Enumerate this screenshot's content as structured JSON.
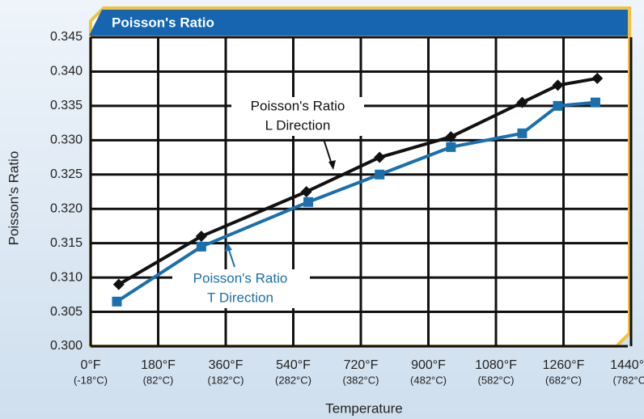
{
  "chart_data": {
    "type": "line",
    "title": "Poisson's Ratio",
    "xlabel": "Temperature",
    "ylabel": "Poisson's Ratio",
    "xlim": [
      0,
      1440
    ],
    "ylim": [
      0.3,
      0.345
    ],
    "xticks": [
      {
        "value": 0,
        "label": "0°F",
        "label2": "(-18°C)"
      },
      {
        "value": 180,
        "label": "180°F",
        "label2": "(82°C)"
      },
      {
        "value": 360,
        "label": "360°F",
        "label2": "(182°C)"
      },
      {
        "value": 540,
        "label": "540°F",
        "label2": "(282°C)"
      },
      {
        "value": 720,
        "label": "720°F",
        "label2": "(382°C)"
      },
      {
        "value": 900,
        "label": "900°F",
        "label2": "(482°C)"
      },
      {
        "value": 1080,
        "label": "1080°F",
        "label2": "(582°C)"
      },
      {
        "value": 1260,
        "label": "1260°F",
        "label2": "(682°C)"
      },
      {
        "value": 1440,
        "label": "1440°F",
        "label2": "(782°C)"
      }
    ],
    "yticks": [
      {
        "value": 0.3,
        "label": "0.300"
      },
      {
        "value": 0.305,
        "label": "0.305"
      },
      {
        "value": 0.31,
        "label": "0.310"
      },
      {
        "value": 0.315,
        "label": "0.315"
      },
      {
        "value": 0.32,
        "label": "0.320"
      },
      {
        "value": 0.325,
        "label": "0.325"
      },
      {
        "value": 0.33,
        "label": "0.330"
      },
      {
        "value": 0.335,
        "label": "0.335"
      },
      {
        "value": 0.34,
        "label": "0.340"
      },
      {
        "value": 0.345,
        "label": "0.345"
      }
    ],
    "grid": true,
    "series": [
      {
        "name": "Poisson's Ratio L Direction",
        "color": "#111111",
        "marker": "diamond",
        "x": [
          75,
          295,
          575,
          770,
          960,
          1150,
          1245,
          1350
        ],
        "values": [
          0.309,
          0.316,
          0.3225,
          0.3275,
          0.3305,
          0.3355,
          0.338,
          0.339
        ]
      },
      {
        "name": "Poisson's Ratio T Direction",
        "color": "#1a6fad",
        "marker": "square",
        "x": [
          70,
          295,
          580,
          770,
          960,
          1150,
          1245,
          1345
        ],
        "values": [
          0.3065,
          0.3145,
          0.321,
          0.325,
          0.329,
          0.331,
          0.335,
          0.3355
        ]
      }
    ],
    "annotations": [
      {
        "lines": [
          "Poisson's Ratio",
          "L Direction"
        ],
        "color": "#111111"
      },
      {
        "lines": [
          "Poisson's Ratio",
          "T Direction"
        ],
        "color": "#1a6fad"
      }
    ]
  }
}
